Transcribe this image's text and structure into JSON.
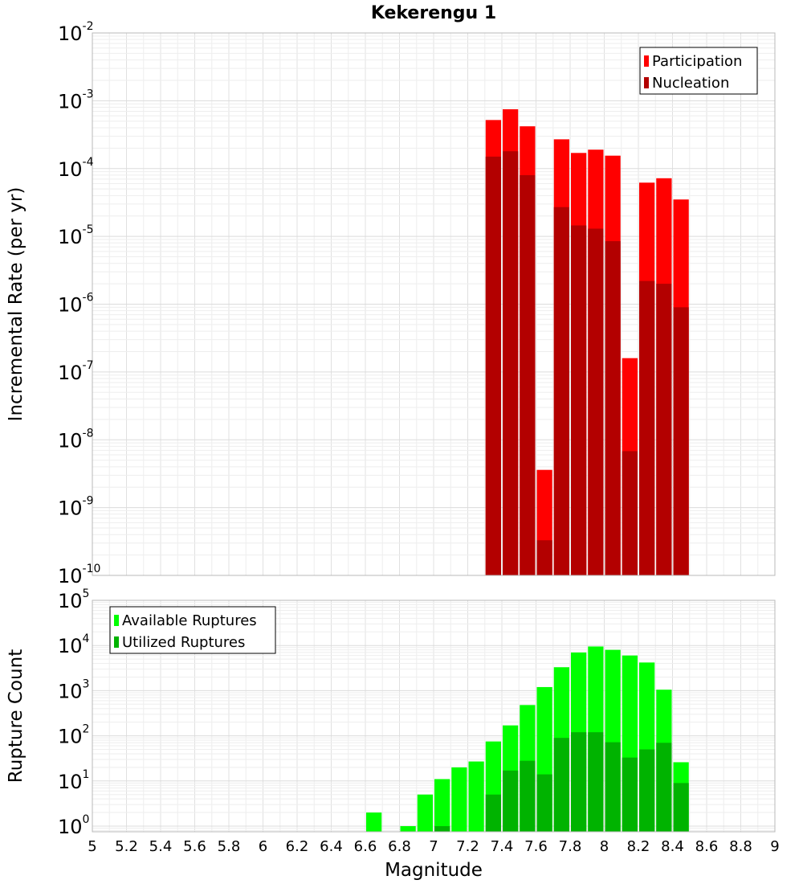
{
  "chart_data": [
    {
      "type": "bar",
      "title": "Kekerengu 1",
      "xlabel": "",
      "ylabel": "Incremental Rate (per yr)",
      "y_scale": "log",
      "xlim": [
        5,
        9
      ],
      "ylim": [
        1e-10,
        0.01
      ],
      "y_tick_exponents": [
        -10,
        -9,
        -8,
        -7,
        -6,
        -5,
        -4,
        -3,
        -2
      ],
      "grid": true,
      "legend_position": "top-right",
      "bar_width": 0.1,
      "x": [
        7.35,
        7.45,
        7.55,
        7.65,
        7.75,
        7.85,
        7.95,
        8.05,
        8.15,
        8.25,
        8.35,
        8.45
      ],
      "series": [
        {
          "name": "Participation",
          "color": "#ff0000",
          "values": [
            0.00052,
            0.00075,
            0.00042,
            3.6e-09,
            0.00027,
            0.00017,
            0.00019,
            0.000155,
            1.6e-07,
            6.2e-05,
            7.2e-05,
            3.5e-05
          ]
        },
        {
          "name": "Nucleation",
          "color": "#b30000",
          "values": [
            0.00015,
            0.00018,
            8e-05,
            3.3e-10,
            2.7e-05,
            1.45e-05,
            1.3e-05,
            8.5e-06,
            6.8e-09,
            2.2e-06,
            2e-06,
            9e-07
          ]
        }
      ]
    },
    {
      "type": "bar",
      "title": "",
      "xlabel": "Magnitude",
      "ylabel": "Rupture Count",
      "y_scale": "log",
      "xlim": [
        5,
        9
      ],
      "ylim": [
        0.75,
        100000
      ],
      "y_tick_exponents": [
        0,
        1,
        2,
        3,
        4,
        5
      ],
      "x_ticks": [
        "5",
        "5.2",
        "5.4",
        "5.6",
        "5.8",
        "6",
        "6.2",
        "6.4",
        "6.6",
        "6.8",
        "7",
        "7.2",
        "7.4",
        "7.6",
        "7.8",
        "8",
        "8.2",
        "8.4",
        "8.6",
        "8.8",
        "9"
      ],
      "grid": true,
      "legend_position": "top-left",
      "bar_width": 0.1,
      "x": [
        6.65,
        6.75,
        6.85,
        6.95,
        7.05,
        7.15,
        7.25,
        7.35,
        7.45,
        7.55,
        7.65,
        7.75,
        7.85,
        7.95,
        8.05,
        8.15,
        8.25,
        8.35,
        8.45
      ],
      "series": [
        {
          "name": "Available Ruptures",
          "color": "#00ff00",
          "values": [
            2,
            0,
            1,
            5,
            11,
            20,
            27,
            75,
            170,
            480,
            1200,
            3300,
            7000,
            9500,
            8000,
            6000,
            4200,
            1050,
            26
          ]
        },
        {
          "name": "Utilized Ruptures",
          "color": "#00b300",
          "values": [
            0,
            0,
            0,
            0,
            1,
            0,
            0,
            5,
            17,
            28,
            14,
            90,
            120,
            120,
            72,
            33,
            50,
            70,
            9
          ]
        }
      ]
    }
  ]
}
